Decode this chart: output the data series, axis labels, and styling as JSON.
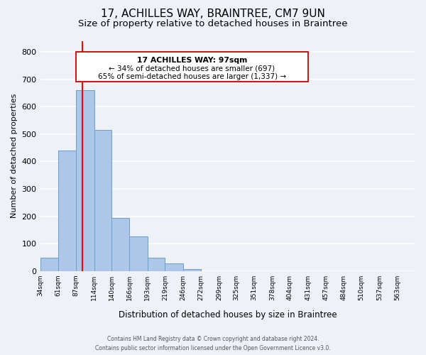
{
  "title": "17, ACHILLES WAY, BRAINTREE, CM7 9UN",
  "subtitle": "Size of property relative to detached houses in Braintree",
  "xlabel": "Distribution of detached houses by size in Braintree",
  "ylabel": "Number of detached properties",
  "bin_labels": [
    "34sqm",
    "61sqm",
    "87sqm",
    "114sqm",
    "140sqm",
    "166sqm",
    "193sqm",
    "219sqm",
    "246sqm",
    "272sqm",
    "299sqm",
    "325sqm",
    "351sqm",
    "378sqm",
    "404sqm",
    "431sqm",
    "457sqm",
    "484sqm",
    "510sqm",
    "537sqm",
    "563sqm"
  ],
  "bin_edges": [
    34,
    61,
    87,
    114,
    140,
    166,
    193,
    219,
    246,
    272,
    299,
    325,
    351,
    378,
    404,
    431,
    457,
    484,
    510,
    537,
    563,
    590
  ],
  "bar_heights": [
    50,
    440,
    660,
    515,
    195,
    127,
    50,
    27,
    8,
    0,
    0,
    0,
    0,
    0,
    0,
    0,
    0,
    0,
    0,
    0,
    0
  ],
  "bar_color": "#aec6e8",
  "bar_edge_color": "#6aa0cc",
  "vline_x": 97,
  "vline_color": "red",
  "annotation_line1": "17 ACHILLES WAY: 97sqm",
  "annotation_line2": "← 34% of detached houses are smaller (697)",
  "annotation_line3": "65% of semi-detached houses are larger (1,337) →",
  "ylim": [
    0,
    840
  ],
  "yticks": [
    0,
    100,
    200,
    300,
    400,
    500,
    600,
    700,
    800
  ],
  "footer_line1": "Contains HM Land Registry data © Crown copyright and database right 2024.",
  "footer_line2": "Contains public sector information licensed under the Open Government Licence v3.0.",
  "bg_color": "#eef2f8",
  "grid_color": "#ffffff",
  "title_fontsize": 11,
  "subtitle_fontsize": 9.5
}
